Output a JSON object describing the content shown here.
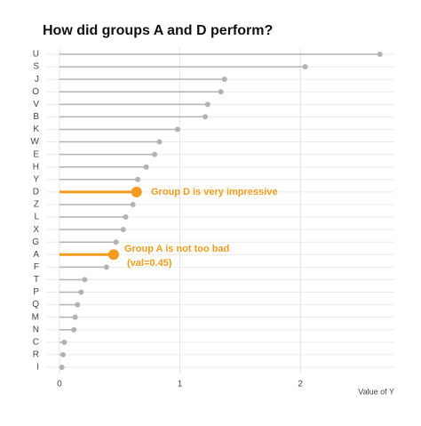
{
  "chart_data": {
    "type": "lollipop",
    "title": "How did groups A and D perform?",
    "x_label": "Value of Y",
    "categories": [
      "U",
      "S",
      "J",
      "O",
      "V",
      "B",
      "K",
      "W",
      "E",
      "H",
      "Y",
      "D",
      "Z",
      "L",
      "X",
      "G",
      "A",
      "F",
      "T",
      "P",
      "Q",
      "M",
      "N",
      "C",
      "R",
      "I"
    ],
    "values": [
      2.66,
      2.04,
      1.37,
      1.34,
      1.23,
      1.21,
      0.98,
      0.83,
      0.79,
      0.72,
      0.65,
      0.64,
      0.61,
      0.55,
      0.53,
      0.47,
      0.45,
      0.39,
      0.21,
      0.18,
      0.15,
      0.13,
      0.12,
      0.04,
      0.03,
      0.02
    ],
    "colors": [
      "#b3b3b3",
      "#b3b3b3",
      "#b3b3b3",
      "#b3b3b3",
      "#b3b3b3",
      "#b3b3b3",
      "#b3b3b3",
      "#b3b3b3",
      "#b3b3b3",
      "#b3b3b3",
      "#b3b3b3",
      "#f39c1f",
      "#b3b3b3",
      "#b3b3b3",
      "#b3b3b3",
      "#b3b3b3",
      "#f39c1f",
      "#b3b3b3",
      "#b3b3b3",
      "#b3b3b3",
      "#b3b3b3",
      "#b3b3b3",
      "#b3b3b3",
      "#b3b3b3",
      "#b3b3b3",
      "#b3b3b3"
    ],
    "highlight_color": "#f39c1f",
    "annotations": [
      "Group D is very impressive",
      "Group A is not too bad",
      "(val=0.45)"
    ],
    "xlim": [
      -0.11,
      2.78
    ],
    "xticks": [
      0,
      1,
      2
    ],
    "grid": true
  }
}
